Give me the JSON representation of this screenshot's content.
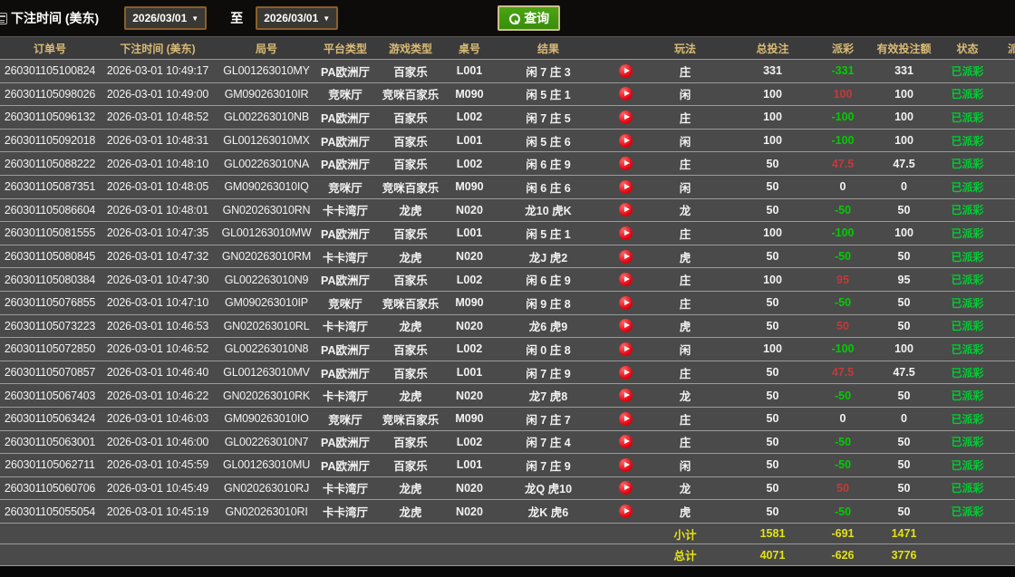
{
  "filter_bar": {
    "label": "下注时间 (美东)",
    "date_from": "2026/03/01",
    "to_label": "至",
    "date_to": "2026/03/01",
    "search_label": "查询"
  },
  "table": {
    "columns": [
      {
        "key": "order",
        "label": "订单号"
      },
      {
        "key": "time",
        "label": "下注时间 (美东)"
      },
      {
        "key": "round",
        "label": "局号"
      },
      {
        "key": "platform",
        "label": "平台类型"
      },
      {
        "key": "game",
        "label": "游戏类型"
      },
      {
        "key": "tableNo",
        "label": "桌号"
      },
      {
        "key": "result",
        "label": "结果"
      },
      {
        "key": "play",
        "label": ""
      },
      {
        "key": "playtype",
        "label": "玩法"
      },
      {
        "key": "bet",
        "label": "总投注"
      },
      {
        "key": "payout",
        "label": "派彩"
      },
      {
        "key": "valid",
        "label": "有效投注额"
      },
      {
        "key": "status",
        "label": "状态"
      },
      {
        "key": "partial",
        "label": "派"
      }
    ],
    "rows": [
      {
        "order": "260301105100824",
        "time": "2026-03-01 10:49:17",
        "round": "GL001263010MY",
        "platform": "PA欧洲厅",
        "game": "百家乐",
        "tableNo": "L001",
        "result": "闲 7 庄 3",
        "playtype": "庄",
        "bet": "331",
        "payout": "-331",
        "valid": "331",
        "status": "已派彩"
      },
      {
        "order": "260301105098026",
        "time": "2026-03-01 10:49:00",
        "round": "GM090263010IR",
        "platform": "竞咪厅",
        "game": "竞咪百家乐",
        "tableNo": "M090",
        "result": "闲 5 庄 1",
        "playtype": "闲",
        "bet": "100",
        "payout": "100",
        "valid": "100",
        "status": "已派彩"
      },
      {
        "order": "260301105096132",
        "time": "2026-03-01 10:48:52",
        "round": "GL002263010NB",
        "platform": "PA欧洲厅",
        "game": "百家乐",
        "tableNo": "L002",
        "result": "闲 7 庄 5",
        "playtype": "庄",
        "bet": "100",
        "payout": "-100",
        "valid": "100",
        "status": "已派彩"
      },
      {
        "order": "260301105092018",
        "time": "2026-03-01 10:48:31",
        "round": "GL001263010MX",
        "platform": "PA欧洲厅",
        "game": "百家乐",
        "tableNo": "L001",
        "result": "闲 5 庄 6",
        "playtype": "闲",
        "bet": "100",
        "payout": "-100",
        "valid": "100",
        "status": "已派彩"
      },
      {
        "order": "260301105088222",
        "time": "2026-03-01 10:48:10",
        "round": "GL002263010NA",
        "platform": "PA欧洲厅",
        "game": "百家乐",
        "tableNo": "L002",
        "result": "闲 6 庄 9",
        "playtype": "庄",
        "bet": "50",
        "payout": "47.5",
        "valid": "47.5",
        "status": "已派彩"
      },
      {
        "order": "260301105087351",
        "time": "2026-03-01 10:48:05",
        "round": "GM090263010IQ",
        "platform": "竞咪厅",
        "game": "竞咪百家乐",
        "tableNo": "M090",
        "result": "闲 6 庄 6",
        "playtype": "闲",
        "bet": "50",
        "payout": "0",
        "valid": "0",
        "status": "已派彩"
      },
      {
        "order": "260301105086604",
        "time": "2026-03-01 10:48:01",
        "round": "GN020263010RN",
        "platform": "卡卡湾厅",
        "game": "龙虎",
        "tableNo": "N020",
        "result": "龙10 虎K",
        "playtype": "龙",
        "bet": "50",
        "payout": "-50",
        "valid": "50",
        "status": "已派彩"
      },
      {
        "order": "260301105081555",
        "time": "2026-03-01 10:47:35",
        "round": "GL001263010MW",
        "platform": "PA欧洲厅",
        "game": "百家乐",
        "tableNo": "L001",
        "result": "闲 5 庄 1",
        "playtype": "庄",
        "bet": "100",
        "payout": "-100",
        "valid": "100",
        "status": "已派彩"
      },
      {
        "order": "260301105080845",
        "time": "2026-03-01 10:47:32",
        "round": "GN020263010RM",
        "platform": "卡卡湾厅",
        "game": "龙虎",
        "tableNo": "N020",
        "result": "龙J 虎2",
        "playtype": "虎",
        "bet": "50",
        "payout": "-50",
        "valid": "50",
        "status": "已派彩"
      },
      {
        "order": "260301105080384",
        "time": "2026-03-01 10:47:30",
        "round": "GL002263010N9",
        "platform": "PA欧洲厅",
        "game": "百家乐",
        "tableNo": "L002",
        "result": "闲 6 庄 9",
        "playtype": "庄",
        "bet": "100",
        "payout": "95",
        "valid": "95",
        "status": "已派彩"
      },
      {
        "order": "260301105076855",
        "time": "2026-03-01 10:47:10",
        "round": "GM090263010IP",
        "platform": "竞咪厅",
        "game": "竞咪百家乐",
        "tableNo": "M090",
        "result": "闲 9 庄 8",
        "playtype": "庄",
        "bet": "50",
        "payout": "-50",
        "valid": "50",
        "status": "已派彩"
      },
      {
        "order": "260301105073223",
        "time": "2026-03-01 10:46:53",
        "round": "GN020263010RL",
        "platform": "卡卡湾厅",
        "game": "龙虎",
        "tableNo": "N020",
        "result": "龙6 虎9",
        "playtype": "虎",
        "bet": "50",
        "payout": "50",
        "valid": "50",
        "status": "已派彩"
      },
      {
        "order": "260301105072850",
        "time": "2026-03-01 10:46:52",
        "round": "GL002263010N8",
        "platform": "PA欧洲厅",
        "game": "百家乐",
        "tableNo": "L002",
        "result": "闲 0 庄 8",
        "playtype": "闲",
        "bet": "100",
        "payout": "-100",
        "valid": "100",
        "status": "已派彩"
      },
      {
        "order": "260301105070857",
        "time": "2026-03-01 10:46:40",
        "round": "GL001263010MV",
        "platform": "PA欧洲厅",
        "game": "百家乐",
        "tableNo": "L001",
        "result": "闲 7 庄 9",
        "playtype": "庄",
        "bet": "50",
        "payout": "47.5",
        "valid": "47.5",
        "status": "已派彩"
      },
      {
        "order": "260301105067403",
        "time": "2026-03-01 10:46:22",
        "round": "GN020263010RK",
        "platform": "卡卡湾厅",
        "game": "龙虎",
        "tableNo": "N020",
        "result": "龙7 虎8",
        "playtype": "龙",
        "bet": "50",
        "payout": "-50",
        "valid": "50",
        "status": "已派彩"
      },
      {
        "order": "260301105063424",
        "time": "2026-03-01 10:46:03",
        "round": "GM090263010IO",
        "platform": "竞咪厅",
        "game": "竞咪百家乐",
        "tableNo": "M090",
        "result": "闲 7 庄 7",
        "playtype": "庄",
        "bet": "50",
        "payout": "0",
        "valid": "0",
        "status": "已派彩"
      },
      {
        "order": "260301105063001",
        "time": "2026-03-01 10:46:00",
        "round": "GL002263010N7",
        "platform": "PA欧洲厅",
        "game": "百家乐",
        "tableNo": "L002",
        "result": "闲 7 庄 4",
        "playtype": "庄",
        "bet": "50",
        "payout": "-50",
        "valid": "50",
        "status": "已派彩"
      },
      {
        "order": "260301105062711",
        "time": "2026-03-01 10:45:59",
        "round": "GL001263010MU",
        "platform": "PA欧洲厅",
        "game": "百家乐",
        "tableNo": "L001",
        "result": "闲 7 庄 9",
        "playtype": "闲",
        "bet": "50",
        "payout": "-50",
        "valid": "50",
        "status": "已派彩"
      },
      {
        "order": "260301105060706",
        "time": "2026-03-01 10:45:49",
        "round": "GN020263010RJ",
        "platform": "卡卡湾厅",
        "game": "龙虎",
        "tableNo": "N020",
        "result": "龙Q 虎10",
        "playtype": "龙",
        "bet": "50",
        "payout": "50",
        "valid": "50",
        "status": "已派彩"
      },
      {
        "order": "260301105055054",
        "time": "2026-03-01 10:45:19",
        "round": "GN020263010RI",
        "platform": "卡卡湾厅",
        "game": "龙虎",
        "tableNo": "N020",
        "result": "龙K 虎6",
        "playtype": "虎",
        "bet": "50",
        "payout": "-50",
        "valid": "50",
        "status": "已派彩"
      }
    ],
    "subtotal": {
      "label": "小计",
      "bet": "1581",
      "payout": "-691",
      "valid": "1471"
    },
    "total": {
      "label": "总计",
      "bet": "4071",
      "payout": "-626",
      "valid": "3776"
    }
  },
  "colors": {
    "button_green": "#3f9a0e",
    "button_border_tan": "#cdc08d",
    "date_border_orange": "#8a5f28",
    "header_text_gold": "#d9bb77",
    "payout_positive_red": "#c23a3a",
    "payout_negative_green": "#00cc00",
    "status_green": "#00cc33",
    "totals_yellow": "#e3e312",
    "play_icon_red": "#e30613",
    "row_bg": "#4a4a4a",
    "header_bg": "#3b3b3b"
  }
}
